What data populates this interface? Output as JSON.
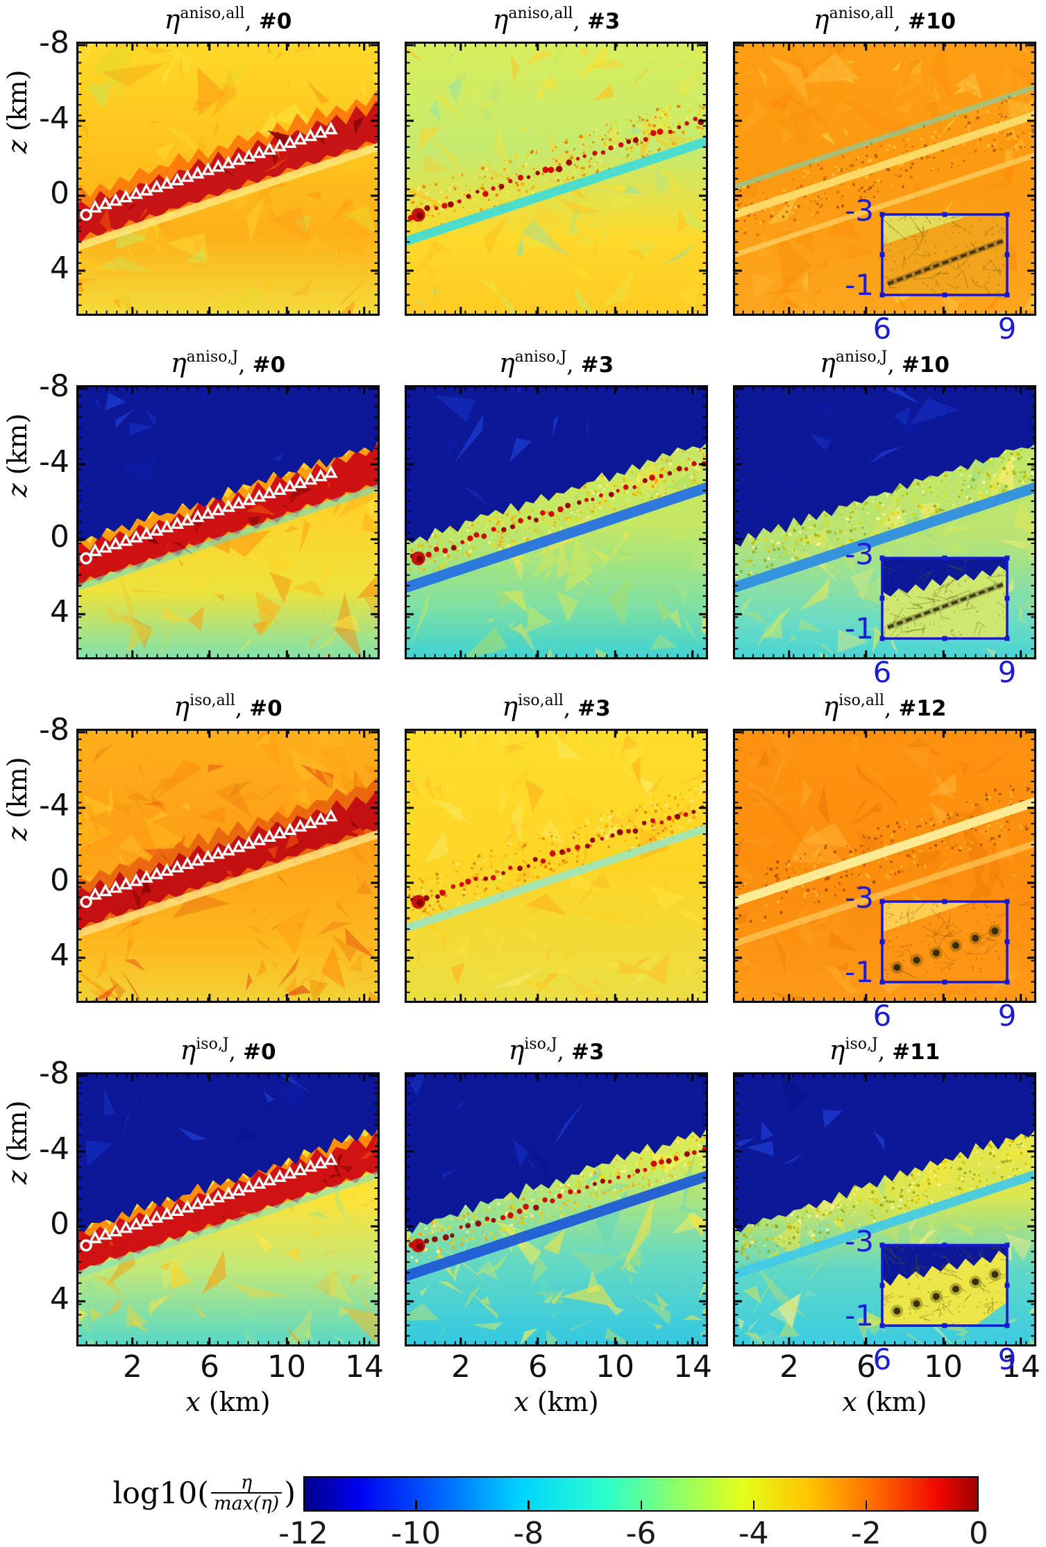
{
  "axes": {
    "z_label_var": "z",
    "z_label_unit": " (km)",
    "x_label_var": "x",
    "x_label_unit": " (km)",
    "z_ticks": [
      "-8",
      "-4",
      "0",
      "4"
    ],
    "x_ticks": [
      "2",
      "6",
      "10",
      "14"
    ],
    "inset_z_ticks": [
      "-3",
      "-1"
    ],
    "inset_x_ticks": [
      "6",
      "9"
    ]
  },
  "colorbar": {
    "label_prefix": "log10(",
    "label_frac_top": "η",
    "label_frac_bottom": "max(η)",
    "label_suffix": ")",
    "ticks": [
      "-12",
      "-10",
      "-8",
      "-6",
      "-4",
      "-2",
      "0"
    ],
    "gradient": [
      [
        0,
        "#000089"
      ],
      [
        0.08,
        "#0000f1"
      ],
      [
        0.2,
        "#0063ff"
      ],
      [
        0.32,
        "#00d4ff"
      ],
      [
        0.45,
        "#2cffca"
      ],
      [
        0.55,
        "#8aff6e"
      ],
      [
        0.65,
        "#e4ff19"
      ],
      [
        0.75,
        "#ffc400"
      ],
      [
        0.85,
        "#ff6800"
      ],
      [
        0.94,
        "#f10800"
      ],
      [
        1,
        "#9f0000"
      ]
    ],
    "frame_color": "#000000"
  },
  "panels": [
    {
      "id": "r1c1",
      "title": {
        "base": "η",
        "sup": "aniso,all",
        "sep": ", ",
        "num": "#0"
      },
      "style": {
        "bg": [
          [
            0,
            "#ffd928"
          ],
          [
            0.35,
            "#fec51e"
          ],
          [
            0.7,
            "#feb01a"
          ],
          [
            1,
            "#f3dc3a"
          ]
        ],
        "noise": [
          "#ffcf1a",
          "#ffb114",
          "#ff9914",
          "#ffe23c",
          "#e8d82e",
          "#f6a816",
          "#c9e455",
          "#ffc81e"
        ],
        "noiseN": 130,
        "halo": "#fe7e0c",
        "band": "solid",
        "bandColor": "#c81414",
        "stripes": [
          {
            "off": 34,
            "halfw": 6,
            "color": "#ffe87a",
            "op": 0.85
          }
        ],
        "markers": true
      }
    },
    {
      "id": "r1c2",
      "title": {
        "base": "η",
        "sup": "aniso,all",
        "sep": ", ",
        "num": "#3"
      },
      "style": {
        "bg": [
          [
            0,
            "#d8ee5c"
          ],
          [
            0.4,
            "#c6ea6e"
          ],
          [
            0.72,
            "#fed92a"
          ],
          [
            1,
            "#fecb22"
          ]
        ],
        "noise": [
          "#cde95e",
          "#bce476",
          "#ffe12e",
          "#ffd22a",
          "#7de0c0",
          "#e9e84a",
          "#ffc11c"
        ],
        "noiseN": 120,
        "speckle": [
          "#ff9e00",
          "#ffd000",
          "#e07800",
          "#ffeb66"
        ],
        "speckleW": 36,
        "band": "dotted",
        "stripes": [
          {
            "off": 26,
            "halfw": 7,
            "color": "#44dcd4",
            "op": 0.95
          }
        ]
      }
    },
    {
      "id": "r1c3",
      "title": {
        "base": "η",
        "sup": "aniso,all",
        "sep": ", ",
        "num": "#10"
      },
      "style": {
        "bg": [
          [
            0,
            "#fe9e13"
          ],
          [
            0.5,
            "#fc9a12"
          ],
          [
            1,
            "#fda51e"
          ]
        ],
        "noise": [
          "#ff9a10",
          "#ffab24",
          "#f68d0a",
          "#ffc040",
          "#ff8c06",
          "#ffd34a"
        ],
        "noiseN": 150,
        "speckle": [
          "#d96c00",
          "#b35400",
          "#ff9c00",
          "#ffc83c"
        ],
        "speckleW": 40,
        "stripes": [
          {
            "off": -52,
            "halfw": 4,
            "color": "#6ad8c4",
            "op": 0.55
          },
          {
            "off": -12,
            "halfw": 6,
            "color": "#ffe070",
            "op": 0.9
          },
          {
            "off": 46,
            "halfw": 4,
            "color": "#ffd465",
            "op": 0.7
          }
        ],
        "inset": {
          "bg": "#f2a41c",
          "mesh": "#7a5a08",
          "wedge": "light",
          "wedgeColor": "#dfe05f",
          "content": "line"
        }
      }
    },
    {
      "id": "r2c1",
      "title": {
        "base": "η",
        "sup": "aniso,J",
        "sep": ", ",
        "num": "#0"
      },
      "style": {
        "bg": [
          [
            0,
            "#fec51e"
          ],
          [
            0.45,
            "#fed22a"
          ],
          [
            0.75,
            "#eee23c"
          ],
          [
            1,
            "#7fe2ae"
          ]
        ],
        "noise": [
          "#ffb118",
          "#ff9d10",
          "#ffd326",
          "#f28c0c",
          "#ffe13a",
          "#e8cf2e"
        ],
        "noiseN": 110,
        "navy": true,
        "navyColor": "#0c1898",
        "halo": "#fe9d0e",
        "haloTop": -38,
        "haloBot": 28,
        "band": "solid",
        "bandColor": "#cf1111",
        "stripes": [
          {
            "off": 30,
            "halfw": 5,
            "color": "#6adcc8",
            "op": 0.6
          }
        ],
        "markers": true
      }
    },
    {
      "id": "r2c2",
      "title": {
        "base": "η",
        "sup": "aniso,J",
        "sep": ", ",
        "num": "#3"
      },
      "style": {
        "bg": [
          [
            0,
            "#cdea5f"
          ],
          [
            0.5,
            "#c6e762"
          ],
          [
            0.8,
            "#81e0a2"
          ],
          [
            1,
            "#3ed2d4"
          ]
        ],
        "noise": [
          "#cfe95c",
          "#bfe476",
          "#ffe448",
          "#a9dd6a",
          "#e2e94e"
        ],
        "noiseN": 120,
        "navy": true,
        "navyColor": "#0c1898",
        "speckle": [
          "#ffd700",
          "#e7c400",
          "#ff9e00",
          "#fff08a"
        ],
        "speckleW": 30,
        "band": "dotted",
        "stripes": [
          {
            "off": 30,
            "halfw": 8,
            "color": "#2673e2",
            "op": 0.95
          }
        ]
      }
    },
    {
      "id": "r2c3",
      "title": {
        "base": "η",
        "sup": "aniso,J",
        "sep": ", ",
        "num": "#10"
      },
      "style": {
        "bg": [
          [
            0,
            "#c9e95e"
          ],
          [
            0.55,
            "#bae472"
          ],
          [
            0.85,
            "#6edcc2"
          ],
          [
            1,
            "#48d4d6"
          ]
        ],
        "noise": [
          "#cfe95e",
          "#c2e670",
          "#ffee6e",
          "#9bdf86",
          "#e8ea52"
        ],
        "noiseN": 140,
        "navy": true,
        "navyColor": "#0c1898",
        "speckle": [
          "#e8d800",
          "#c2bc00",
          "#8fae22",
          "#fff9a0"
        ],
        "speckleW": 34,
        "stripes": [
          {
            "off": 30,
            "halfw": 8,
            "color": "#2f8fe2",
            "op": 0.95
          }
        ],
        "inset": {
          "bg": "#cfe76f",
          "mesh": "#5a6410",
          "wedge": "navy",
          "wedgeColor": "#0c1898",
          "content": "line"
        }
      }
    },
    {
      "id": "r3c1",
      "title": {
        "base": "η",
        "sup": "iso,all",
        "sep": ", ",
        "num": "#0"
      },
      "style": {
        "bg": [
          [
            0,
            "#feb01c"
          ],
          [
            0.4,
            "#fe9f16"
          ],
          [
            0.8,
            "#feb920"
          ],
          [
            1,
            "#f0d336"
          ]
        ],
        "noise": [
          "#ff9c10",
          "#ff8a08",
          "#ffb51e",
          "#e87410",
          "#ffc72a",
          "#f2950e",
          "#e23d0e"
        ],
        "noiseN": 140,
        "halo": "#ea680e",
        "band": "solid",
        "bandColor": "#c41010",
        "stripes": [
          {
            "off": 34,
            "halfw": 6,
            "color": "#ffdf7c",
            "op": 0.85
          }
        ],
        "markers": true
      }
    },
    {
      "id": "r3c2",
      "title": {
        "base": "η",
        "sup": "iso,all",
        "sep": ", ",
        "num": "#3"
      },
      "style": {
        "bg": [
          [
            0,
            "#fede2c"
          ],
          [
            0.5,
            "#fed526"
          ],
          [
            1,
            "#eadf45"
          ]
        ],
        "noise": [
          "#ffe33a",
          "#ffd120",
          "#ffc22a",
          "#f7ec6a",
          "#eedd30",
          "#ffb31e"
        ],
        "noiseN": 130,
        "speckle": [
          "#ff9e00",
          "#e07800",
          "#ffd000",
          "#ffeb80"
        ],
        "speckleW": 36,
        "band": "dotted",
        "stripes": [
          {
            "off": 26,
            "halfw": 6,
            "color": "#90e8d2",
            "op": 0.8
          }
        ]
      }
    },
    {
      "id": "r3c3",
      "title": {
        "base": "η",
        "sup": "iso,all",
        "sep": ", ",
        "num": "#12"
      },
      "style": {
        "bg": [
          [
            0,
            "#fe9210"
          ],
          [
            0.6,
            "#fc8d0e"
          ],
          [
            1,
            "#fe9a18"
          ]
        ],
        "noise": [
          "#ff8e0c",
          "#ff9d1c",
          "#f2820a",
          "#ffb53a",
          "#e87808"
        ],
        "noiseN": 150,
        "speckle": [
          "#c85e00",
          "#a64e00",
          "#ff9400",
          "#ffba32"
        ],
        "speckleW": 40,
        "stripes": [
          {
            "off": -12,
            "halfw": 7,
            "color": "#ffef9c",
            "op": 0.95
          },
          {
            "off": 48,
            "halfw": 5,
            "color": "#ffd465",
            "op": 0.6
          }
        ],
        "inset": {
          "bg": "#ff9415",
          "mesh": "#8a5505",
          "wedge": "light",
          "wedgeColor": "#ffd052",
          "content": "dots"
        }
      }
    },
    {
      "id": "r4c1",
      "title": {
        "base": "η",
        "sup": "iso,J",
        "sep": ", ",
        "num": "#0"
      },
      "style": {
        "bg": [
          [
            0,
            "#fed126"
          ],
          [
            0.45,
            "#fee236"
          ],
          [
            0.72,
            "#c2e878"
          ],
          [
            1,
            "#54d8ca"
          ]
        ],
        "noise": [
          "#ffd426",
          "#ffb81c",
          "#ffe84a",
          "#f0a212",
          "#d8e45c",
          "#8fe098"
        ],
        "noiseN": 120,
        "navy": true,
        "navyColor": "#0c1898",
        "halo": "#fe8d0a",
        "haloTop": -36,
        "haloBot": 26,
        "band": "solid",
        "bandColor": "#d01212",
        "stripes": [
          {
            "off": 30,
            "halfw": 5,
            "color": "#7ee2c2",
            "op": 0.6
          }
        ],
        "markers": true
      }
    },
    {
      "id": "r4c2",
      "title": {
        "base": "η",
        "sup": "iso,J",
        "sep": ", ",
        "num": "#3"
      },
      "style": {
        "bg": [
          [
            0,
            "#fee83e"
          ],
          [
            0.35,
            "#cdea62"
          ],
          [
            0.68,
            "#66dac2"
          ],
          [
            1,
            "#32c8e2"
          ]
        ],
        "noise": [
          "#ffef52",
          "#e2ea4e",
          "#a8e07c",
          "#62d8c0",
          "#ffe43a"
        ],
        "noiseN": 120,
        "navy": true,
        "navyColor": "#0c1898",
        "speckle": [
          "#ffd700",
          "#eec800",
          "#ff9e00",
          "#fff290"
        ],
        "speckleW": 30,
        "band": "dotted",
        "stripes": [
          {
            "off": 32,
            "halfw": 8,
            "color": "#1f5cd6",
            "op": 0.95
          }
        ]
      }
    },
    {
      "id": "r4c3",
      "title": {
        "base": "η",
        "sup": "iso,J",
        "sep": ", ",
        "num": "#11"
      },
      "style": {
        "bg": [
          [
            0,
            "#f4ea44"
          ],
          [
            0.45,
            "#dbe650"
          ],
          [
            0.72,
            "#60d8c6"
          ],
          [
            1,
            "#3acce2"
          ]
        ],
        "noise": [
          "#f4e83e",
          "#e4e44a",
          "#cfe45c",
          "#7adec2",
          "#fff282"
        ],
        "noiseN": 140,
        "navy": true,
        "navyColor": "#0c1898",
        "speckle": [
          "#e0cc00",
          "#c2b400",
          "#96a81e",
          "#fff4a0"
        ],
        "speckleW": 34,
        "stripes": [
          {
            "off": 30,
            "halfw": 7,
            "color": "#3fc9ea",
            "op": 0.9
          }
        ],
        "inset": {
          "bg": "#ece64a",
          "mesh": "#6a6410",
          "wedge": "navy",
          "wedgeColor": "#0c1898",
          "content": "dots",
          "cyanCorner": true
        }
      }
    }
  ],
  "chart_data": {
    "type": "heatmap",
    "grid": {
      "rows": 4,
      "cols": 3
    },
    "x": {
      "label": "x (km)",
      "ticks": [
        2,
        6,
        10,
        14
      ],
      "range": [
        -1,
        15
      ]
    },
    "y": {
      "label": "z (km)",
      "ticks": [
        -8,
        -4,
        0,
        4
      ],
      "range": [
        -8.5,
        6.5
      ],
      "direction": "down"
    },
    "colorbar": {
      "label": "log10(η/max(η))",
      "ticks": [
        -12,
        -10,
        -8,
        -6,
        -4,
        -2,
        0
      ],
      "range": [
        -12,
        0
      ],
      "colormap": "jet"
    },
    "inset_region": {
      "x": [
        6,
        9
      ],
      "z": [
        -3,
        -1
      ],
      "left_tick_labels": [
        -3,
        -1
      ],
      "bottom_tick_labels": [
        6,
        9
      ]
    },
    "panels": [
      {
        "row": 1,
        "col": 1,
        "quantity": "eta^aniso,all",
        "refinement": "#0",
        "pattern": "coarse triangular mesh, yellow-orange field (~1e-5..1e-4), solid dark-red dipping receiver band (~1e-1) with white source circle and 24 white receiver triangles, pale yellow stripe under band"
      },
      {
        "row": 1,
        "col": 2,
        "quantity": "eta^aniso,all",
        "refinement": "#3",
        "pattern": "yellow-green upper field, refined speckled orange band with dotted dark-red receiver line, cyan stripe beneath band, yellow-orange lower field"
      },
      {
        "row": 1,
        "col": 3,
        "quantity": "eta^aniso,all",
        "refinement": "#10",
        "pattern": "orange field, finely refined speckled bands separated by pale stripes, faint cyan streak upper-left, blue-framed mesh inset over x=6..9 km, z=-3..-1 km"
      },
      {
        "row": 2,
        "col": 1,
        "quantity": "eta^aniso,J",
        "refinement": "#0",
        "pattern": "dark navy (zero sensitivity) above jagged surface, orange-yellow spikes over solid dark-red band with white markers, yellow-orange lower field fading to green-cyan at bottom"
      },
      {
        "row": 2,
        "col": 2,
        "quantity": "eta^aniso,J",
        "refinement": "#3",
        "pattern": "navy above surface, yellow speckled band with dotted red receiver line, blue stripe beneath, green field fading to cyan"
      },
      {
        "row": 2,
        "col": 3,
        "quantity": "eta^aniso,J",
        "refinement": "#10",
        "pattern": "navy above surface, green-yellow speckled band, blue stripe, green-cyan field, blue-framed mesh inset"
      },
      {
        "row": 3,
        "col": 1,
        "quantity": "eta^iso,all",
        "refinement": "#0",
        "pattern": "coarse mesh, deep orange field with red patches, solid dark-red band with white source circle and receiver triangles"
      },
      {
        "row": 3,
        "col": 2,
        "quantity": "eta^iso,all",
        "refinement": "#3",
        "pattern": "yellow field, speckled orange band with dotted dark-red receiver line, pale aqua stripe under band"
      },
      {
        "row": 3,
        "col": 3,
        "quantity": "eta^iso,all",
        "refinement": "#12",
        "pattern": "uniform orange field, bright pale diagonal stripe, dense fine speckled band, inset with dark receiver spots"
      },
      {
        "row": 4,
        "col": 1,
        "quantity": "eta^iso,J",
        "refinement": "#0",
        "pattern": "navy above surface, jagged red-orange band with white markers, yellow field fading to green-cyan bottom"
      },
      {
        "row": 4,
        "col": 2,
        "quantity": "eta^iso,J",
        "refinement": "#3",
        "pattern": "navy above surface, yellow band with dotted red receiver line, deep blue stripe beneath, turquoise lower field"
      },
      {
        "row": 4,
        "col": 3,
        "quantity": "eta^iso,J",
        "refinement": "#11",
        "pattern": "navy above surface, yellow speckled band, cyan stripe, green-cyan field, inset with dark receiver spots"
      }
    ]
  }
}
